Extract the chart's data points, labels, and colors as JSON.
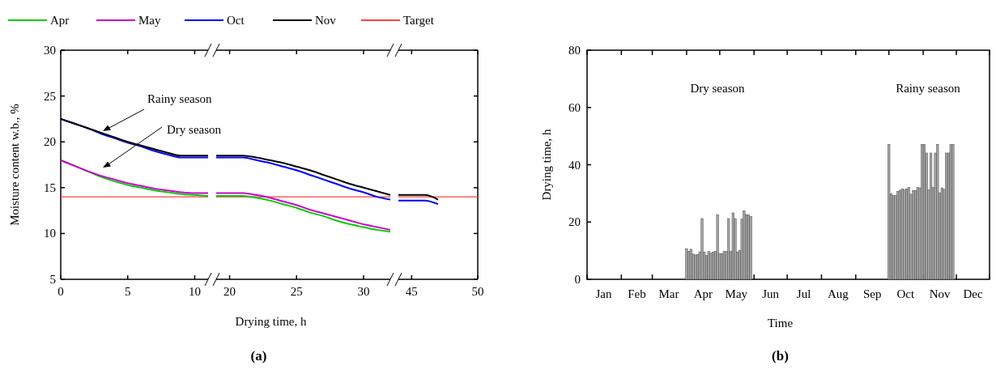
{
  "chart_data": [
    {
      "type": "line",
      "ylabel": "Moisture content w.b., %",
      "legend": "top",
      "xlim": [
        0,
        11
      ],
      "xticks": [
        0,
        5,
        10
      ],
      "ylim": [
        5,
        30
      ],
      "yticks": [
        5,
        10,
        15,
        20,
        25,
        30
      ],
      "series": [
        {
          "name": "Apr",
          "color": "#00cc00",
          "x": [
            0,
            1,
            2,
            3,
            4,
            5,
            6,
            7,
            8,
            9,
            10,
            11
          ],
          "values": [
            18.0,
            17.4,
            16.8,
            16.2,
            15.7,
            15.3,
            15.0,
            14.7,
            14.5,
            14.3,
            14.2,
            14.1
          ]
        },
        {
          "name": "May",
          "color": "#cc00cc",
          "x": [
            0,
            1,
            2,
            3,
            4,
            5,
            6,
            7,
            8,
            9,
            10,
            11
          ],
          "values": [
            18.0,
            17.4,
            16.8,
            16.3,
            15.9,
            15.5,
            15.2,
            14.9,
            14.7,
            14.5,
            14.4,
            14.4
          ]
        },
        {
          "name": "Oct",
          "color": "#0000ff",
          "x": [
            0,
            1,
            2,
            3,
            4,
            5,
            6,
            7,
            8,
            9,
            10,
            11
          ],
          "values": [
            22.5,
            22.0,
            21.5,
            20.9,
            20.4,
            19.9,
            19.5,
            19.0,
            18.6,
            18.3,
            18.3,
            18.3
          ]
        },
        {
          "name": "Nov",
          "color": "#000000",
          "x": [
            0,
            1,
            2,
            3,
            4,
            5,
            6,
            7,
            8,
            9,
            10,
            11
          ],
          "values": [
            22.5,
            22.0,
            21.5,
            21.0,
            20.5,
            20.0,
            19.6,
            19.2,
            18.8,
            18.5,
            18.5,
            18.5
          ]
        }
      ],
      "ref_lines": [
        {
          "axis": "y",
          "value": 14,
          "label": "Target",
          "color": "#ff4040"
        }
      ],
      "annotations": [
        "Rainy season",
        "Dry season"
      ]
    },
    {
      "type": "line",
      "xlabel": "Drying time, h",
      "tick_labels": "x",
      "xlim": [
        19,
        32
      ],
      "xticks": [
        20,
        25,
        30
      ],
      "ylim": [
        5,
        30
      ],
      "series": [
        {
          "name": "Apr",
          "color": "#00cc00",
          "x": [
            19,
            20,
            21,
            22,
            23,
            24,
            25,
            26,
            27,
            28,
            29,
            30,
            31,
            32
          ],
          "values": [
            14.1,
            14.1,
            14.1,
            13.9,
            13.6,
            13.2,
            12.8,
            12.3,
            11.9,
            11.4,
            11.0,
            10.7,
            10.4,
            10.2
          ]
        },
        {
          "name": "May",
          "color": "#cc00cc",
          "x": [
            19,
            20,
            21,
            22,
            23,
            24,
            25,
            26,
            27,
            28,
            29,
            30,
            31,
            32
          ],
          "values": [
            14.4,
            14.4,
            14.4,
            14.2,
            13.9,
            13.5,
            13.1,
            12.6,
            12.2,
            11.8,
            11.4,
            11.0,
            10.7,
            10.4
          ]
        },
        {
          "name": "Oct",
          "color": "#0000ff",
          "x": [
            19,
            20,
            21,
            22,
            23,
            24,
            25,
            26,
            27,
            28,
            29,
            30,
            31,
            32
          ],
          "values": [
            18.3,
            18.3,
            18.3,
            18.0,
            17.7,
            17.3,
            16.9,
            16.4,
            15.9,
            15.4,
            14.9,
            14.5,
            14.0,
            13.7
          ]
        },
        {
          "name": "Nov",
          "color": "#000000",
          "x": [
            19,
            20,
            21,
            22,
            23,
            24,
            25,
            26,
            27,
            28,
            29,
            30,
            31,
            32
          ],
          "values": [
            18.5,
            18.5,
            18.5,
            18.3,
            18.0,
            17.7,
            17.3,
            16.9,
            16.4,
            15.9,
            15.4,
            15.0,
            14.6,
            14.2
          ]
        }
      ],
      "ref_lines": [
        {
          "axis": "y",
          "value": 14,
          "color": "#ff4040"
        }
      ],
      "annotations": [
        "(a)"
      ]
    },
    {
      "type": "line",
      "tick_labels": "x",
      "xlim": [
        44,
        50
      ],
      "xticks": [
        45,
        50
      ],
      "ylim": [
        5,
        30
      ],
      "series": [
        {
          "name": "Oct",
          "color": "#0000ff",
          "x": [
            44,
            45,
            46,
            47
          ],
          "values": [
            13.6,
            13.6,
            13.6,
            13.2
          ]
        },
        {
          "name": "Nov",
          "color": "#000000",
          "x": [
            44,
            45,
            46,
            47
          ],
          "values": [
            14.2,
            14.2,
            14.2,
            13.7
          ]
        }
      ],
      "ref_lines": [
        {
          "axis": "y",
          "value": 14,
          "color": "#ff4040"
        }
      ]
    },
    {
      "type": "bar",
      "xlabel": "Time",
      "ylabel": "Drying time, h",
      "color": "#a8a8a8",
      "xlim": [
        "--01-01",
        "--12-31"
      ],
      "ylim": [
        0,
        80
      ],
      "yticks": [
        0,
        20,
        40,
        60,
        80
      ],
      "xticks": [
        {
          "value": "--01-01",
          "label": null
        },
        {
          "value": "--01-16",
          "label": "Jan"
        },
        {
          "value": "--02-01",
          "label": null
        },
        {
          "value": "--02-15",
          "label": "Feb"
        },
        {
          "value": "--03-01",
          "label": null
        },
        {
          "value": "--03-16",
          "label": "Mar"
        },
        {
          "value": "--04-01",
          "label": null
        },
        {
          "value": "--04-16",
          "label": "Apr"
        },
        {
          "value": "--05-01",
          "label": null
        },
        {
          "value": "--05-16",
          "label": "May"
        },
        {
          "value": "--06-01",
          "label": null
        },
        {
          "value": "--06-16",
          "label": "Jun"
        },
        {
          "value": "--07-01",
          "label": null
        },
        {
          "value": "--07-16",
          "label": "Jul"
        },
        {
          "value": "--08-01",
          "label": null
        },
        {
          "value": "--08-16",
          "label": "Aug"
        },
        {
          "value": "--09-01",
          "label": null
        },
        {
          "value": "--09-16",
          "label": "Sep"
        },
        {
          "value": "--10-01",
          "label": null
        },
        {
          "value": "--10-16",
          "label": "Oct"
        },
        {
          "value": "--11-01",
          "label": null
        },
        {
          "value": "--11-16",
          "label": "Nov"
        },
        {
          "value": "--12-01",
          "label": null
        },
        {
          "value": "--12-16",
          "label": "Dec"
        },
        {
          "value": "--12-31",
          "label": null
        }
      ],
      "x": [
        "--04-01",
        "--04-03",
        "--04-05",
        "--04-07",
        "--04-09",
        "--04-11",
        "--04-13",
        "--04-15",
        "--04-17",
        "--04-19",
        "--04-21",
        "--04-23",
        "--04-25",
        "--04-27",
        "--04-29",
        "--05-01",
        "--05-03",
        "--05-05",
        "--05-07",
        "--05-09",
        "--05-11",
        "--05-13",
        "--05-15",
        "--05-17",
        "--05-19",
        "--05-21",
        "--05-23",
        "--05-25",
        "--05-27",
        "--05-29",
        "--10-01",
        "--10-03",
        "--10-05",
        "--10-07",
        "--10-09",
        "--10-11",
        "--10-13",
        "--10-15",
        "--10-17",
        "--10-19",
        "--10-21",
        "--10-23",
        "--10-25",
        "--10-27",
        "--10-29",
        "--10-31",
        "--11-02",
        "--11-04",
        "--11-06",
        "--11-08",
        "--11-10",
        "--11-12",
        "--11-14",
        "--11-16",
        "--11-18",
        "--11-20",
        "--11-22",
        "--11-24",
        "--11-26",
        "--11-28"
      ],
      "values": [
        10.7,
        9.8,
        10.5,
        8.8,
        8.5,
        8.7,
        9.6,
        21.2,
        9.5,
        8.3,
        9.7,
        9.1,
        9.5,
        9.7,
        22.6,
        9.0,
        9.0,
        9.7,
        9.7,
        21.2,
        9.7,
        23.2,
        21.2,
        9.5,
        10.1,
        21.0,
        23.9,
        22.6,
        22.5,
        22.0,
        47.1,
        29.9,
        29.3,
        29.3,
        30.7,
        31.1,
        31.6,
        31.2,
        31.6,
        32.1,
        29.7,
        30.9,
        30.9,
        32.1,
        31.9,
        47.1,
        47.1,
        44.1,
        31.2,
        44.1,
        32.1,
        44.1,
        47.1,
        30.2,
        31.9,
        31.4,
        44.1,
        44.1,
        47.1,
        47.1
      ],
      "annotations": [
        "(b)",
        "Dry season",
        "Rainy season"
      ]
    }
  ]
}
